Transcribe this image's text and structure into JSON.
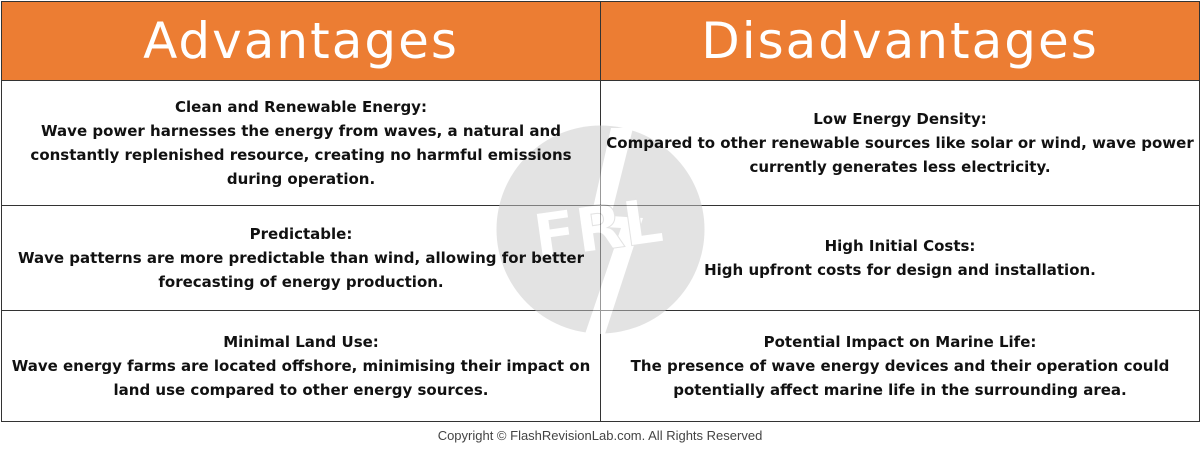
{
  "headers": {
    "advantages": "Advantages",
    "disadvantages": "Disadvantages"
  },
  "rows": [
    {
      "advantage": {
        "title": "Clean and Renewable Energy:",
        "body": "Wave power harnesses the energy from waves, a natural and constantly replenished resource, creating no harmful emissions during operation."
      },
      "disadvantage": {
        "title": "Low Energy Density:",
        "body": "Compared to other renewable sources like solar or wind, wave power currently generates less electricity."
      }
    },
    {
      "advantage": {
        "title": "Predictable:",
        "body": "Wave patterns are more predictable than wind, allowing for better forecasting of energy production."
      },
      "disadvantage": {
        "title": "High Initial Costs:",
        "body": "High upfront costs for design and installation."
      }
    },
    {
      "advantage": {
        "title": "Minimal Land Use:",
        "body": "Wave energy farms are located offshore, minimising their impact on land use compared to other energy sources."
      },
      "disadvantage": {
        "title": "Potential Impact on Marine Life:",
        "body": "The presence of wave energy devices and their operation could potentially affect marine life in the surrounding area."
      }
    }
  ],
  "watermark": {
    "text": "FRL",
    "color": "#c8c8c8"
  },
  "footer": {
    "copyright": "Copyright © FlashRevisionLab.com. All Rights Reserved"
  },
  "colors": {
    "header_background": "#ec7d33",
    "header_text": "#ffffff",
    "border": "#333333"
  }
}
